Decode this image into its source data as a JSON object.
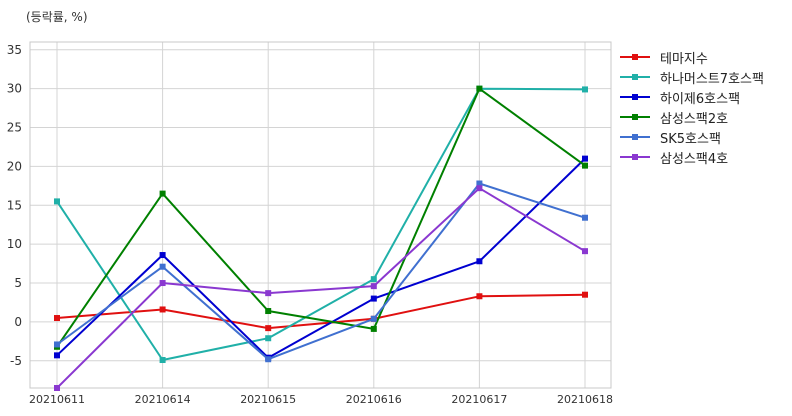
{
  "unit_label": "(등락률, %)",
  "chart_data": {
    "type": "line",
    "ylim": [
      -8.5,
      36
    ],
    "yticks": [
      -5,
      0,
      5,
      10,
      15,
      20,
      25,
      30,
      35
    ],
    "categories": [
      "20210611",
      "20210614",
      "20210615",
      "20210616",
      "20210617",
      "20210618"
    ],
    "grid": true,
    "legend_position": "right",
    "series": [
      {
        "name": "테마지수",
        "color": "#e01010",
        "values": [
          0.5,
          1.6,
          -0.8,
          0.4,
          3.3,
          3.5
        ]
      },
      {
        "name": "하나머스트7호스팩",
        "color": "#20b0a8",
        "values": [
          15.5,
          -4.9,
          -2.1,
          5.5,
          30.0,
          29.9
        ]
      },
      {
        "name": "하이제6호스팩",
        "color": "#0000d0",
        "values": [
          -4.3,
          8.6,
          -4.6,
          3.0,
          7.8,
          21.0
        ]
      },
      {
        "name": "삼성스팩2호",
        "color": "#008000",
        "values": [
          -3.2,
          16.5,
          1.4,
          -0.9,
          30.0,
          20.1
        ]
      },
      {
        "name": "SK5호스팩",
        "color": "#4070d0",
        "values": [
          -2.9,
          7.1,
          -4.8,
          0.4,
          17.8,
          13.4
        ]
      },
      {
        "name": "삼성스팩4호",
        "color": "#8a38d0",
        "values": [
          -8.5,
          5.0,
          3.7,
          4.6,
          17.2,
          9.1
        ]
      }
    ]
  }
}
